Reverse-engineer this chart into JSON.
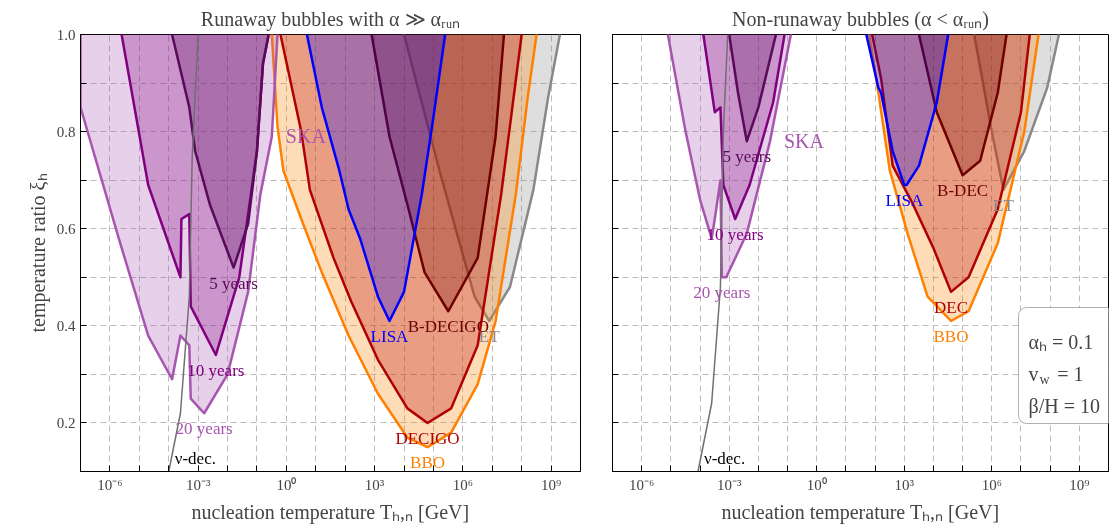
{
  "chart_data": [
    {
      "type": "area",
      "title": "Runaway bubbles with α ≫ αᵣᵤₙ",
      "xlabel": "nucleation temperature Tₕ,ₙ [GeV]",
      "ylabel": "temperature ratio ξₕ",
      "log": "x",
      "grid": true,
      "xlim": [
        1e-07,
        10000000000.0
      ],
      "ylim": [
        0.1,
        1.0
      ],
      "xticks": [
        {
          "value": 1e-07,
          "label": null
        },
        {
          "value": 1e-06,
          "label": "10⁻⁶"
        },
        {
          "value": 1e-05,
          "label": null
        },
        {
          "value": 0.0001,
          "label": null
        },
        {
          "value": 0.001,
          "label": "10⁻³"
        },
        {
          "value": 0.01,
          "label": null
        },
        {
          "value": 0.1,
          "label": null
        },
        {
          "value": 1,
          "label": "10⁰"
        },
        {
          "value": 10,
          "label": null
        },
        {
          "value": 100,
          "label": null
        },
        {
          "value": 1000,
          "label": "10³"
        },
        {
          "value": 10000.0,
          "label": null
        },
        {
          "value": 100000.0,
          "label": null
        },
        {
          "value": 1000000.0,
          "label": "10⁶"
        },
        {
          "value": 10000000.0,
          "label": null
        },
        {
          "value": 100000000.0,
          "label": null
        },
        {
          "value": 1000000000.0,
          "label": "10⁹"
        },
        {
          "value": 10000000000.0,
          "label": null
        }
      ],
      "yticks": [
        {
          "value": 0.1,
          "label": null
        },
        0.2,
        {
          "value": 0.3,
          "label": null
        },
        0.4,
        {
          "value": 0.5,
          "label": null
        },
        0.6,
        {
          "value": 0.7,
          "label": null
        },
        0.8,
        {
          "value": 0.9,
          "label": null
        },
        {
          "value": 1,
          "label": "1.0"
        }
      ],
      "series": [
        {
          "name": "ET",
          "color": "#888888",
          "x": [
            10000.0,
            160000.0,
            2500000.0,
            7900000.0,
            40000000.0,
            250000000.0,
            790000000.0,
            2000000000.0
          ],
          "values": [
            1.0,
            0.72,
            0.46,
            0.41,
            0.48,
            0.68,
            0.87,
            1.0
          ]
        },
        {
          "name": "BBO",
          "color": "#ff8000",
          "x": [
            0.32,
            0.5,
            0.79,
            3.2,
            16,
            130,
            1300,
            13000.0,
            63000.0,
            400000.0,
            3200000.0,
            13000000.0,
            63000000.0,
            160000000.0,
            320000000.0
          ],
          "values": [
            1.0,
            0.81,
            0.72,
            0.62,
            0.51,
            0.38,
            0.26,
            0.17,
            0.15,
            0.18,
            0.28,
            0.41,
            0.67,
            0.87,
            1.0
          ]
        },
        {
          "name": "DECIGO",
          "color": "#b00000",
          "x": [
            0.63,
            3.2,
            6.3,
            40,
            160,
            1300,
            13000.0,
            63000.0,
            400000.0,
            3200000.0,
            20000000.0,
            100000000.0
          ],
          "values": [
            1.0,
            0.8,
            0.68,
            0.54,
            0.45,
            0.33,
            0.23,
            0.2,
            0.23,
            0.36,
            0.67,
            1.0
          ]
        },
        {
          "name": "B-DECIGO",
          "color": "#6e0000",
          "x": [
            790,
            3200,
            13000.0,
            50000.0,
            320000.0,
            3200000.0,
            13000000.0,
            25000000.0
          ],
          "values": [
            1.0,
            0.79,
            0.65,
            0.51,
            0.43,
            0.54,
            0.79,
            1.0
          ]
        },
        {
          "name": "LISA",
          "color": "#0000ff",
          "x": [
            5,
            16,
            63,
            130,
            320,
            1300,
            3200,
            10000.0,
            40000.0,
            100000.0,
            250000.0
          ],
          "values": [
            1.0,
            0.85,
            0.72,
            0.64,
            0.58,
            0.46,
            0.41,
            0.47,
            0.67,
            0.83,
            1.0
          ]
        },
        {
          "name": "20 years",
          "color": "#a855b0",
          "x": [
            1e-07,
            1e-07,
            2e-06,
            2e-05,
            0.00013,
            0.00025,
            0.0005,
            0.00056,
            0.0016,
            0.01,
            0.05,
            0.13,
            0.32,
            0.5
          ],
          "values": [
            1.0,
            0.85,
            0.58,
            0.38,
            0.29,
            0.38,
            0.36,
            0.25,
            0.22,
            0.3,
            0.47,
            0.67,
            0.79,
            1.0
          ]
        },
        {
          "name": "10 years",
          "color": "#800080",
          "x": [
            2.5e-06,
            2e-05,
            0.00025,
            0.00027,
            0.0005,
            0.00056,
            0.004,
            0.025,
            0.1,
            0.16,
            0.25
          ],
          "values": [
            1.0,
            0.69,
            0.5,
            0.62,
            0.63,
            0.44,
            0.34,
            0.5,
            0.76,
            0.94,
            1.0
          ]
        },
        {
          "name": "5 years",
          "color": "#5a0a5a",
          "x": [
            0.00013,
            0.0005,
            0.00079,
            0.0025,
            0.016,
            0.05,
            0.1,
            0.16,
            0.25
          ],
          "values": [
            1.0,
            0.85,
            0.76,
            0.65,
            0.52,
            0.61,
            0.76,
            0.94,
            1.0
          ]
        },
        {
          "name": "ν-dec.",
          "type": "line",
          "color": "#707070",
          "x": [
            0.0001,
            0.00025,
            0.0005,
            0.00063,
            0.001
          ],
          "values": [
            0.1,
            0.22,
            0.46,
            0.75,
            1.0
          ]
        }
      ],
      "annotations": [
        "SKA"
      ]
    },
    {
      "type": "area",
      "title": "Non-runaway bubbles (α < αᵣᵤₙ)",
      "xlabel": "nucleation temperature Tₕ,ₙ [GeV]",
      "log": "x",
      "grid": true,
      "tick_labels": "x",
      "xlim": [
        1e-07,
        10000000000.0
      ],
      "ylim": [
        0.1,
        1.0
      ],
      "xticks": [
        {
          "value": 1e-07,
          "label": null
        },
        {
          "value": 1e-06,
          "label": "10⁻⁶"
        },
        {
          "value": 1e-05,
          "label": null
        },
        {
          "value": 0.0001,
          "label": null
        },
        {
          "value": 0.001,
          "label": "10⁻³"
        },
        {
          "value": 0.01,
          "label": null
        },
        {
          "value": 0.1,
          "label": null
        },
        {
          "value": 1,
          "label": "10⁰"
        },
        {
          "value": 10,
          "label": null
        },
        {
          "value": 100,
          "label": null
        },
        {
          "value": 1000,
          "label": "10³"
        },
        {
          "value": 10000.0,
          "label": null
        },
        {
          "value": 100000.0,
          "label": null
        },
        {
          "value": 1000000.0,
          "label": "10⁶"
        },
        {
          "value": 10000000.0,
          "label": null
        },
        {
          "value": 100000000.0,
          "label": null
        },
        {
          "value": 1000000000.0,
          "label": "10⁹"
        },
        {
          "value": 10000000000.0,
          "label": null
        }
      ],
      "yticks": [
        0.1,
        0.2,
        0.3,
        0.4,
        0.5,
        0.6,
        0.7,
        0.8,
        0.9,
        1
      ],
      "series": [
        {
          "name": "ET",
          "color": "#888888",
          "x": [
            250000.0,
            1000000.0,
            2500000.0,
            13000000.0,
            79000000.0,
            200000000.0
          ],
          "values": [
            1.0,
            0.8,
            0.68,
            0.76,
            0.89,
            1.0
          ]
        },
        {
          "name": "BBO",
          "color": "#ff8000",
          "x": [
            63,
            130,
            320,
            1300,
            6300,
            40000.0,
            160000.0,
            1600000.0,
            13000000.0,
            40000000.0
          ],
          "values": [
            1.0,
            0.88,
            0.72,
            0.59,
            0.46,
            0.41,
            0.43,
            0.57,
            0.8,
            1.0
          ]
        },
        {
          "name": "DEC",
          "color": "#b00000",
          "x": [
            79,
            160,
            400,
            2000,
            10000.0,
            40000.0,
            160000.0,
            1600000.0,
            10000000.0,
            20000000.0
          ],
          "values": [
            1.0,
            0.91,
            0.73,
            0.65,
            0.56,
            0.47,
            0.5,
            0.64,
            0.84,
            1.0
          ]
        },
        {
          "name": "B-DEC",
          "color": "#6e0000",
          "x": [
            3200,
            13000.0,
            100000.0,
            400000.0,
            1600000.0,
            3200000.0
          ],
          "values": [
            1.0,
            0.84,
            0.71,
            0.74,
            0.88,
            1.0
          ]
        },
        {
          "name": "LISA",
          "color": "#0000ff",
          "x": [
            50,
            130,
            160,
            400,
            1000,
            1200,
            3200,
            13000.0,
            32000.0
          ],
          "values": [
            1.0,
            0.89,
            0.88,
            0.76,
            0.69,
            0.69,
            0.73,
            0.86,
            1.0
          ]
        },
        {
          "name": "20 years",
          "color": "#a855b0",
          "x": [
            7.9e-06,
            3.2e-05,
            0.0001,
            0.00025,
            0.00032,
            0.0005,
            0.00056,
            0.00079,
            0.004,
            0.025,
            0.13
          ],
          "values": [
            1.0,
            0.8,
            0.66,
            0.58,
            0.62,
            0.7,
            0.5,
            0.5,
            0.59,
            0.78,
            1.0
          ]
        },
        {
          "name": "10 years",
          "color": "#800080",
          "x": [
            0.00013,
            0.00032,
            0.0005,
            0.00063,
            0.0016,
            0.005,
            0.032,
            0.079
          ],
          "values": [
            1.0,
            0.84,
            0.85,
            0.69,
            0.62,
            0.69,
            0.86,
            1.0
          ]
        },
        {
          "name": "5 years",
          "color": "#5a0a5a",
          "x": [
            0.001,
            0.002,
            0.004,
            0.01,
            0.04
          ],
          "values": [
            1.0,
            0.88,
            0.78,
            0.85,
            1.0
          ]
        },
        {
          "name": "ν-dec.",
          "type": "line",
          "color": "#707070",
          "x": [
            8.5e-05,
            0.00025,
            0.0005,
            0.00063,
            0.00089
          ],
          "values": [
            0.1,
            0.24,
            0.48,
            0.8,
            1.0
          ]
        }
      ],
      "annotations": [
        "SKA",
        "αₕ = 0.1",
        "v$_{w}$ = 1",
        "β/H = 10"
      ]
    }
  ]
}
